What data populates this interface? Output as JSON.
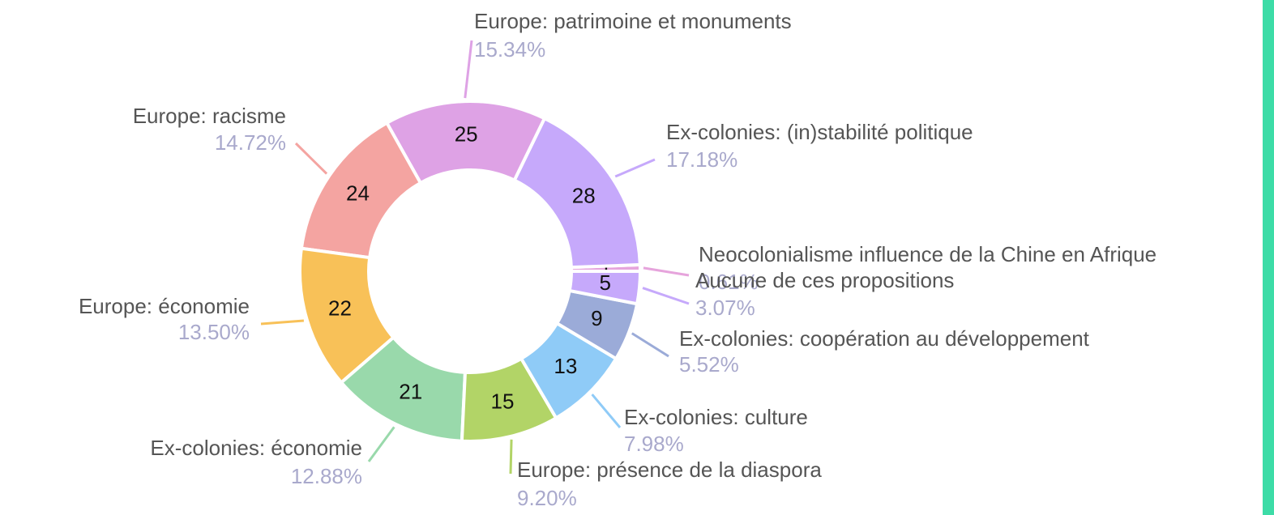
{
  "chart_data": {
    "type": "pie",
    "categories": [
      "Neocolonialisme influence de la Chine en Afrique",
      "Ex-colonies: (in)stabilité politique",
      "Europe: patrimoine et monuments",
      "Europe: racisme",
      "Europe: économie",
      "Ex-colonies: économie",
      "Europe: présence de la diaspora",
      "Ex-colonies: culture",
      "Ex-colonies: coopération au développement",
      "Aucune de ces propositions"
    ],
    "values": [
      1,
      28,
      25,
      24,
      22,
      21,
      15,
      13,
      9,
      5
    ],
    "percent_labels": [
      "0.61%",
      "17.18%",
      "15.34%",
      "14.72%",
      "13.50%",
      "12.88%",
      "9.20%",
      "7.98%",
      "5.52%",
      "3.07%"
    ],
    "colors": [
      "#e6a4dc",
      "#c6a9fb",
      "#dea2e5",
      "#f4a4a1",
      "#f8c158",
      "#99d9ab",
      "#b2d467",
      "#8fcbf7",
      "#9babd8",
      "#c6a9fb"
    ]
  }
}
